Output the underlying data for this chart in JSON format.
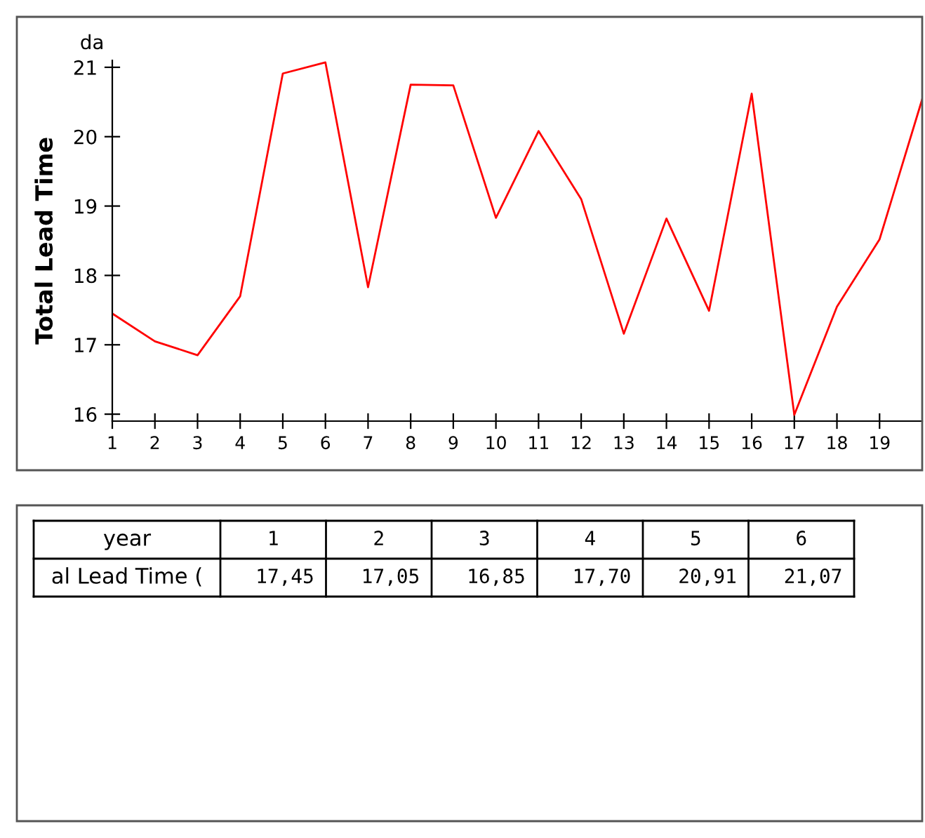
{
  "chart_data": [
    {
      "type": "line",
      "ylabel": "Total Lead Time",
      "annotations": [
        "da"
      ],
      "x": [
        1,
        2,
        3,
        4,
        5,
        6,
        7,
        8,
        9,
        10,
        11,
        12,
        13,
        14,
        15,
        16,
        17,
        18,
        19,
        20
      ],
      "series": [
        {
          "color": "#ff0000",
          "values": [
            17.45,
            17.05,
            16.85,
            17.7,
            20.91,
            21.07,
            17.83,
            20.75,
            20.74,
            18.83,
            20.08,
            19.1,
            17.16,
            18.82,
            17.49,
            20.62,
            15.99,
            17.55,
            18.52,
            20.54
          ]
        }
      ],
      "xlim": [
        1,
        20
      ],
      "ylim": [
        15.9,
        21.1
      ],
      "xticks": [
        1,
        2,
        3,
        4,
        5,
        6,
        7,
        8,
        9,
        10,
        11,
        12,
        13,
        14,
        15,
        16,
        17,
        18,
        19
      ],
      "yticks": [
        16,
        17,
        18,
        19,
        20,
        21
      ],
      "grid": false,
      "legend": false,
      "marker": "none",
      "line_style": "solid"
    },
    {
      "type": "other",
      "annotations": [
        "year",
        "1 2 3 4 5 6",
        "al Lead Time (",
        "17,45 17,05 16,85 17,70 20,91 21,07"
      ]
    }
  ]
}
